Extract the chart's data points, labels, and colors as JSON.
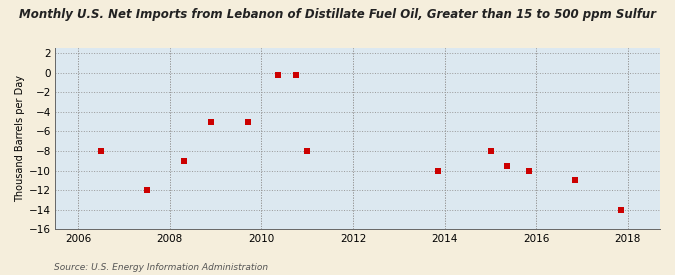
{
  "title": "Monthly U.S. Net Imports from Lebanon of Distillate Fuel Oil, Greater than 15 to 500 ppm Sulfur",
  "ylabel": "Thousand Barrels per Day",
  "source": "Source: U.S. Energy Information Administration",
  "background_color": "#f5eedc",
  "plot_bg_color": "#dce8f0",
  "xlim": [
    2005.5,
    2018.7
  ],
  "ylim": [
    -16,
    2.5
  ],
  "yticks": [
    2,
    0,
    -2,
    -4,
    -6,
    -8,
    -10,
    -12,
    -14,
    -16
  ],
  "xticks": [
    2006,
    2008,
    2010,
    2012,
    2014,
    2016,
    2018
  ],
  "data_x": [
    2006.5,
    2007.5,
    2008.3,
    2008.9,
    2009.7,
    2010.35,
    2010.75,
    2011.0,
    2013.85,
    2015.0,
    2015.35,
    2015.85,
    2016.85,
    2017.85
  ],
  "data_y": [
    -8,
    -12,
    -9,
    -5,
    -5,
    -0.3,
    -0.3,
    -8,
    -10,
    -8,
    -9.5,
    -10,
    -11,
    -14
  ],
  "marker_color": "#cc0000",
  "marker_size": 4
}
